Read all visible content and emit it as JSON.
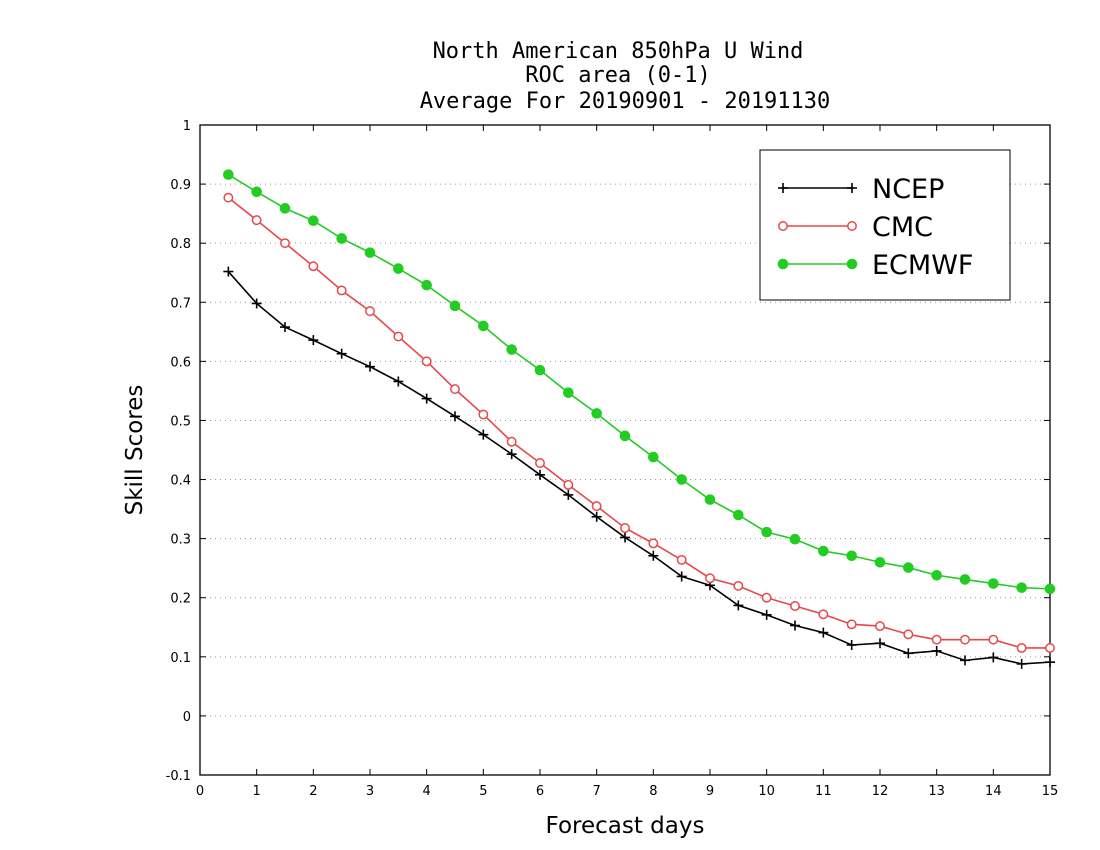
{
  "chart_data": {
    "type": "line",
    "title": [
      "North American 850hPa U Wind",
      "ROC area (0-1)",
      "Average For 20190901 - 20191130"
    ],
    "xlabel": "Forecast days",
    "ylabel": "Skill Scores",
    "xlim": [
      0,
      15
    ],
    "ylim": [
      -0.1,
      1
    ],
    "xticks": [
      0,
      1,
      2,
      3,
      4,
      5,
      6,
      7,
      8,
      9,
      10,
      11,
      12,
      13,
      14,
      15
    ],
    "yticks": [
      -0.1,
      0,
      0.1,
      0.2,
      0.3,
      0.4,
      0.5,
      0.6,
      0.7,
      0.8,
      0.9,
      1
    ],
    "ytick_labels": [
      "-0.1",
      "0",
      "0.1",
      "0.2",
      "0.3",
      "0.4",
      "0.5",
      "0.6",
      "0.7",
      "0.8",
      "0.9",
      "1"
    ],
    "grid": "horizontal dotted",
    "legend_position": "top-right",
    "x": [
      0.5,
      1,
      1.5,
      2,
      2.5,
      3,
      3.5,
      4,
      4.5,
      5,
      5.5,
      6,
      6.5,
      7,
      7.5,
      8,
      8.5,
      9,
      9.5,
      10,
      10.5,
      11,
      11.5,
      12,
      12.5,
      13,
      13.5,
      14,
      14.5,
      15
    ],
    "series": [
      {
        "name": "NCEP",
        "color": "#000000",
        "marker": "plus",
        "values": [
          0.752,
          0.698,
          0.658,
          0.636,
          0.613,
          0.591,
          0.566,
          0.537,
          0.507,
          0.476,
          0.443,
          0.408,
          0.374,
          0.337,
          0.302,
          0.271,
          0.236,
          0.221,
          0.187,
          0.171,
          0.153,
          0.141,
          0.12,
          0.123,
          0.106,
          0.11,
          0.094,
          0.099,
          0.088,
          0.091
        ]
      },
      {
        "name": "CMC",
        "color": "#e8474a",
        "marker": "open-circle",
        "values": [
          0.877,
          0.839,
          0.8,
          0.761,
          0.72,
          0.685,
          0.642,
          0.6,
          0.553,
          0.51,
          0.464,
          0.428,
          0.391,
          0.355,
          0.318,
          0.292,
          0.264,
          0.233,
          0.22,
          0.2,
          0.186,
          0.172,
          0.155,
          0.152,
          0.138,
          0.129,
          0.129,
          0.129,
          0.115,
          0.115
        ]
      },
      {
        "name": "ECMWF",
        "color": "#22cc22",
        "marker": "filled-circle",
        "values": [
          0.916,
          0.887,
          0.859,
          0.838,
          0.808,
          0.784,
          0.757,
          0.729,
          0.694,
          0.66,
          0.62,
          0.585,
          0.547,
          0.512,
          0.474,
          0.438,
          0.4,
          0.366,
          0.34,
          0.311,
          0.299,
          0.279,
          0.271,
          0.26,
          0.251,
          0.238,
          0.231,
          0.224,
          0.217,
          0.215
        ]
      }
    ]
  }
}
